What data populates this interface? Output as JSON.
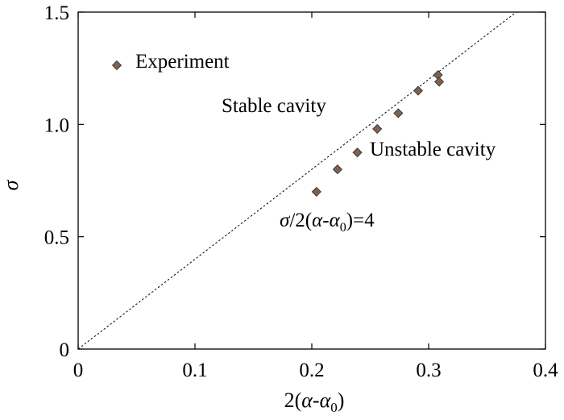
{
  "chart_data": {
    "type": "scatter",
    "xlabel": "2(α-α₀)",
    "ylabel": "σ",
    "xlim": [
      0,
      0.4
    ],
    "ylim": [
      0,
      1.5
    ],
    "xticks": [
      {
        "value": 0,
        "label": "0"
      },
      {
        "value": 0.1,
        "label": "0.1"
      },
      {
        "value": 0.2,
        "label": "0.2"
      },
      {
        "value": 0.3,
        "label": "0.3"
      },
      {
        "value": 0.4,
        "label": "0.4"
      }
    ],
    "yticks": [
      {
        "value": 0,
        "label": "0"
      },
      {
        "value": 0.5,
        "label": "0.5"
      },
      {
        "value": 1.0,
        "label": "1.0"
      },
      {
        "value": 1.5,
        "label": "1.5"
      }
    ],
    "grid": false,
    "legend": {
      "position": "top-left",
      "entries": [
        {
          "label": "Experiment",
          "marker": "diamond",
          "color": "#7a6255"
        }
      ]
    },
    "series": [
      {
        "name": "Experiment",
        "marker": "diamond",
        "color": "#7a6255",
        "points": [
          {
            "x": 0.204,
            "y": 0.7
          },
          {
            "x": 0.222,
            "y": 0.8
          },
          {
            "x": 0.239,
            "y": 0.875
          },
          {
            "x": 0.256,
            "y": 0.98
          },
          {
            "x": 0.274,
            "y": 1.05
          },
          {
            "x": 0.291,
            "y": 1.15
          },
          {
            "x": 0.308,
            "y": 1.22
          },
          {
            "x": 0.309,
            "y": 1.19
          }
        ]
      }
    ],
    "reference_line": {
      "slope": 4,
      "intercept": 0,
      "style": "dashed",
      "label": "σ/2(α-α₀)=4"
    },
    "annotations": [
      {
        "text": "Stable cavity",
        "x": 0.22,
        "y": 1.27
      },
      {
        "text": "Unstable cavity",
        "x": 0.31,
        "y": 0.88
      },
      {
        "text": "σ/2(α-α₀)=4",
        "x": 0.2,
        "y": 0.57
      }
    ]
  }
}
